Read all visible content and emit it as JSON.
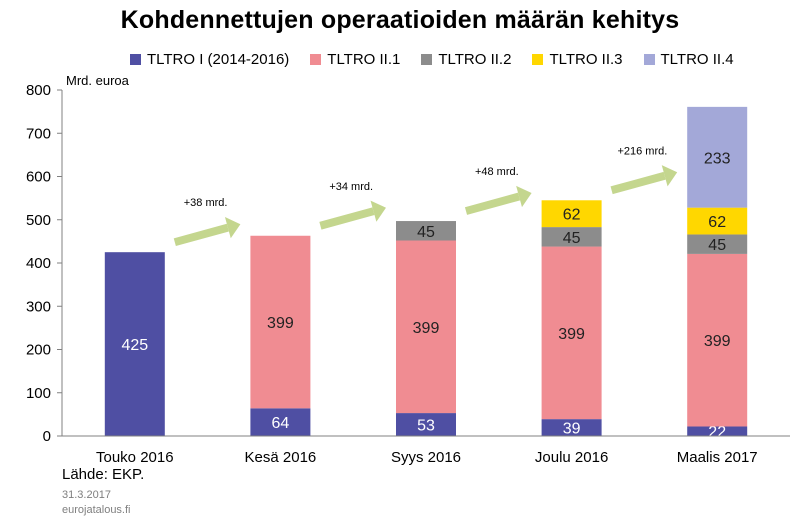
{
  "chart_data": {
    "type": "bar",
    "stacked": true,
    "title": "Kohdennettujen operaatioiden määrän kehitys",
    "ylabel": "Mrd. euroa",
    "ylim": [
      0,
      800
    ],
    "yticks": [
      0,
      100,
      200,
      300,
      400,
      500,
      600,
      700,
      800
    ],
    "categories": [
      "Touko 2016",
      "Kesä 2016",
      "Syys 2016",
      "Joulu 2016",
      "Maalis 2017"
    ],
    "series": [
      {
        "name": "TLTRO I (2014-2016)",
        "color": "#4f4fa3",
        "values": [
          425,
          64,
          53,
          39,
          22
        ]
      },
      {
        "name": "TLTRO II.1",
        "color": "#f08c92",
        "values": [
          0,
          399,
          399,
          399,
          399
        ]
      },
      {
        "name": "TLTRO II.2",
        "color": "#8c8c8c",
        "values": [
          0,
          0,
          45,
          45,
          45
        ]
      },
      {
        "name": "TLTRO II.3",
        "color": "#ffd700",
        "values": [
          0,
          0,
          0,
          62,
          62
        ]
      },
      {
        "name": "TLTRO II.4",
        "color": "#a3a8d8",
        "values": [
          0,
          0,
          0,
          0,
          233
        ]
      }
    ],
    "annotations": [
      "+38 mrd.",
      "+34 mrd.",
      "+48 mrd.",
      "+216 mrd."
    ],
    "arrow_color": "#c4d68e",
    "legend_position": "top",
    "grid": false
  },
  "footer": {
    "source": "Lähde: EKP.",
    "date": "31.3.2017",
    "site": "eurojatalous.fi"
  }
}
